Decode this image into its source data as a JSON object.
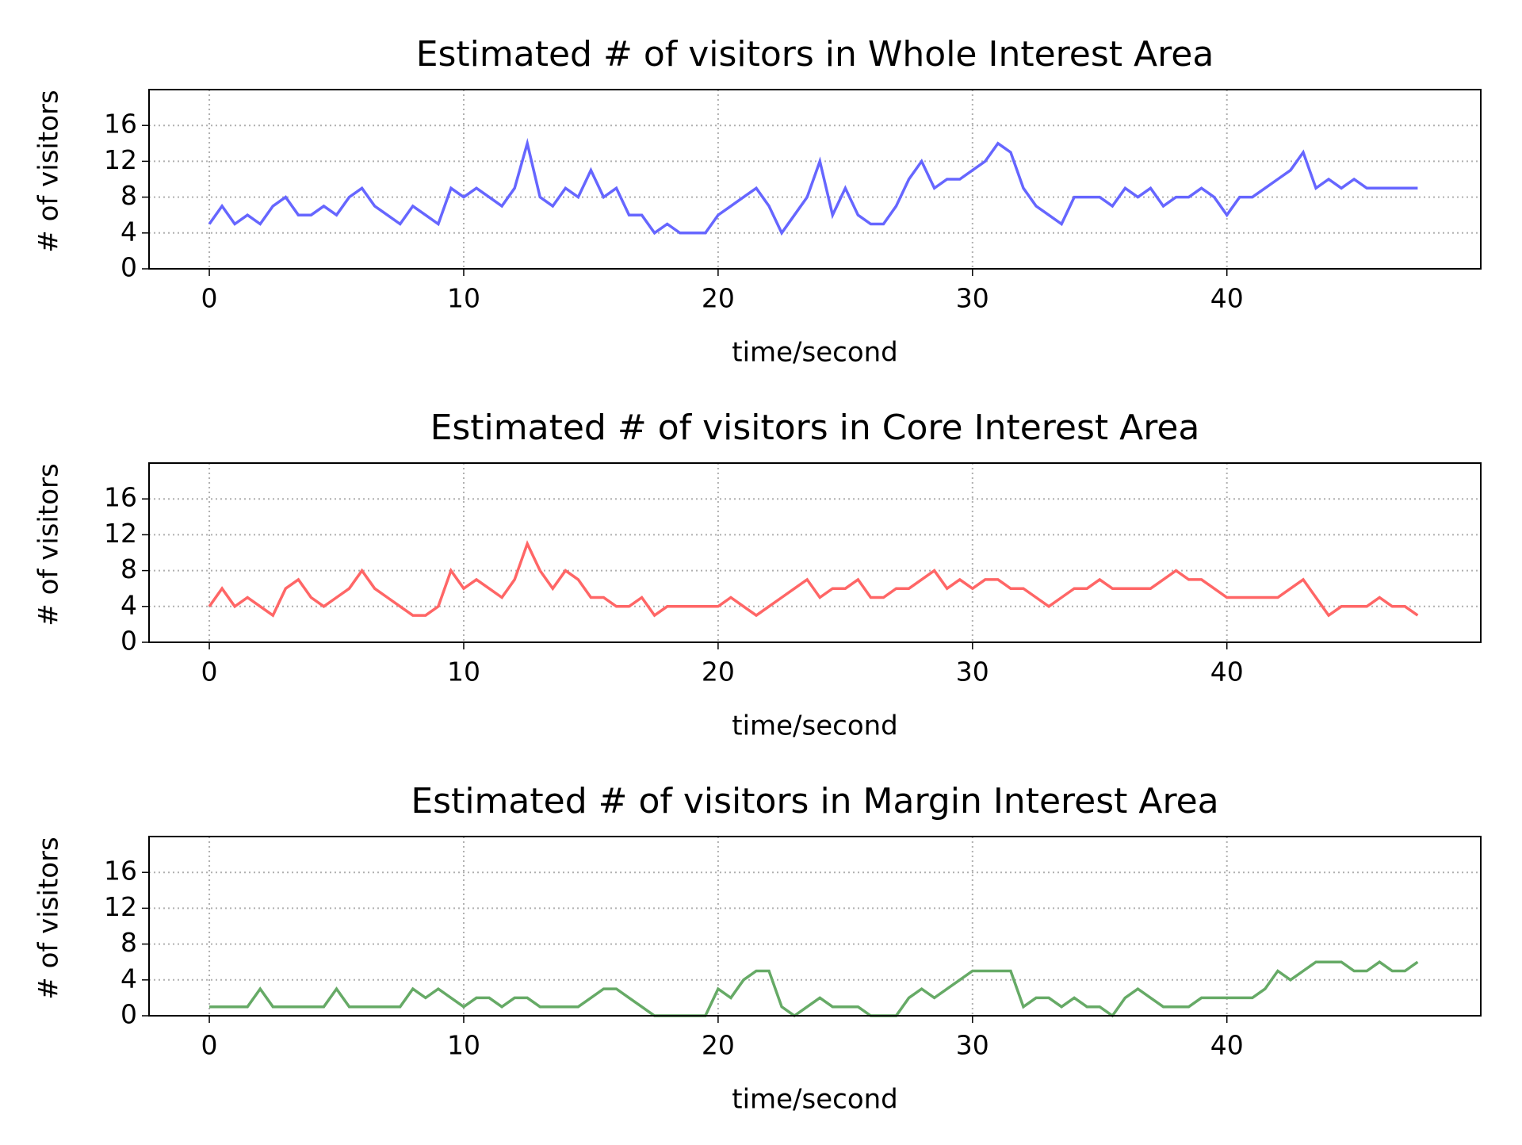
{
  "chart_data": [
    {
      "type": "line",
      "title": "Estimated # of visitors in Whole Interest Area",
      "xlabel": "time/second",
      "ylabel": "# of visitors",
      "color": "#6666ff",
      "x": [
        0,
        0.5,
        1,
        1.5,
        2,
        2.5,
        3,
        3.5,
        4,
        4.5,
        5,
        5.5,
        6,
        6.5,
        7,
        7.5,
        8,
        8.5,
        9,
        9.5,
        10,
        10.5,
        11,
        11.5,
        12,
        12.5,
        13,
        13.5,
        14,
        14.5,
        15,
        15.5,
        16,
        16.5,
        17,
        17.5,
        18,
        18.5,
        19,
        19.5,
        20,
        20.5,
        21,
        21.5,
        22,
        22.5,
        23,
        23.5,
        24,
        24.5,
        25,
        25.5,
        26,
        26.5,
        27,
        27.5,
        28,
        28.5,
        29,
        29.5,
        30,
        30.5,
        31,
        31.5,
        32,
        32.5,
        33,
        33.5,
        34,
        34.5,
        35,
        35.5,
        36,
        36.5,
        37,
        37.5,
        38,
        38.5,
        39,
        39.5,
        40,
        40.5,
        41,
        41.5,
        42,
        42.5,
        43,
        43.5,
        44,
        44.5,
        45,
        45.5,
        46,
        46.5,
        47,
        47.5
      ],
      "values": [
        5,
        7,
        5,
        6,
        5,
        7,
        8,
        6,
        6,
        7,
        6,
        8,
        9,
        7,
        6,
        5,
        7,
        6,
        5,
        9,
        8,
        9,
        8,
        7,
        9,
        14,
        8,
        7,
        9,
        8,
        11,
        8,
        9,
        6,
        6,
        4,
        5,
        4,
        4,
        4,
        6,
        7,
        8,
        9,
        7,
        4,
        6,
        8,
        12,
        6,
        9,
        6,
        5,
        5,
        7,
        10,
        12,
        9,
        10,
        10,
        11,
        12,
        14,
        13,
        9,
        7,
        6,
        5,
        8,
        8,
        8,
        7,
        9,
        8,
        9,
        7,
        8,
        8,
        9,
        8,
        6,
        8,
        8,
        9,
        10,
        11,
        13,
        9,
        10,
        9,
        10,
        9,
        9,
        9,
        9,
        9
      ],
      "xlim": [
        -2.37,
        49.98
      ],
      "ylim": [
        0,
        20
      ],
      "xticks": [
        0,
        10,
        20,
        30,
        40
      ],
      "yticks": [
        0,
        4,
        8,
        12,
        16
      ],
      "grid": true
    },
    {
      "type": "line",
      "title": "Estimated # of visitors in Core Interest Area",
      "xlabel": "time/second",
      "ylabel": "# of visitors",
      "color": "#ff6666",
      "x": [
        0,
        0.5,
        1,
        1.5,
        2,
        2.5,
        3,
        3.5,
        4,
        4.5,
        5,
        5.5,
        6,
        6.5,
        7,
        7.5,
        8,
        8.5,
        9,
        9.5,
        10,
        10.5,
        11,
        11.5,
        12,
        12.5,
        13,
        13.5,
        14,
        14.5,
        15,
        15.5,
        16,
        16.5,
        17,
        17.5,
        18,
        18.5,
        19,
        19.5,
        20,
        20.5,
        21,
        21.5,
        22,
        22.5,
        23,
        23.5,
        24,
        24.5,
        25,
        25.5,
        26,
        26.5,
        27,
        27.5,
        28,
        28.5,
        29,
        29.5,
        30,
        30.5,
        31,
        31.5,
        32,
        32.5,
        33,
        33.5,
        34,
        34.5,
        35,
        35.5,
        36,
        36.5,
        37,
        37.5,
        38,
        38.5,
        39,
        39.5,
        40,
        40.5,
        41,
        41.5,
        42,
        42.5,
        43,
        43.5,
        44,
        44.5,
        45,
        45.5,
        46,
        46.5,
        47,
        47.5
      ],
      "values": [
        4,
        6,
        4,
        5,
        4,
        3,
        6,
        7,
        5,
        4,
        5,
        6,
        8,
        6,
        5,
        4,
        3,
        3,
        4,
        8,
        6,
        7,
        6,
        5,
        7,
        11,
        8,
        6,
        8,
        7,
        5,
        5,
        4,
        4,
        5,
        3,
        4,
        4,
        4,
        4,
        4,
        5,
        4,
        3,
        4,
        5,
        6,
        7,
        5,
        6,
        6,
        7,
        5,
        5,
        6,
        6,
        7,
        8,
        6,
        7,
        6,
        7,
        7,
        6,
        6,
        5,
        4,
        5,
        6,
        6,
        7,
        6,
        6,
        6,
        6,
        7,
        8,
        7,
        7,
        6,
        5,
        5,
        5,
        5,
        5,
        6,
        7,
        5,
        3,
        4,
        4,
        4,
        5,
        4,
        4,
        3
      ],
      "xlim": [
        -2.37,
        49.98
      ],
      "ylim": [
        0,
        20
      ],
      "xticks": [
        0,
        10,
        20,
        30,
        40
      ],
      "yticks": [
        0,
        4,
        8,
        12,
        16
      ],
      "grid": true
    },
    {
      "type": "line",
      "title": "Estimated # of visitors in Margin Interest Area",
      "xlabel": "time/second",
      "ylabel": "# of visitors",
      "color": "#66aa66",
      "x": [
        0,
        0.5,
        1,
        1.5,
        2,
        2.5,
        3,
        3.5,
        4,
        4.5,
        5,
        5.5,
        6,
        6.5,
        7,
        7.5,
        8,
        8.5,
        9,
        9.5,
        10,
        10.5,
        11,
        11.5,
        12,
        12.5,
        13,
        13.5,
        14,
        14.5,
        15,
        15.5,
        16,
        16.5,
        17,
        17.5,
        18,
        18.5,
        19,
        19.5,
        20,
        20.5,
        21,
        21.5,
        22,
        22.5,
        23,
        23.5,
        24,
        24.5,
        25,
        25.5,
        26,
        26.5,
        27,
        27.5,
        28,
        28.5,
        29,
        29.5,
        30,
        30.5,
        31,
        31.5,
        32,
        32.5,
        33,
        33.5,
        34,
        34.5,
        35,
        35.5,
        36,
        36.5,
        37,
        37.5,
        38,
        38.5,
        39,
        39.5,
        40,
        40.5,
        41,
        41.5,
        42,
        42.5,
        43,
        43.5,
        44,
        44.5,
        45,
        45.5,
        46,
        46.5,
        47,
        47.5
      ],
      "values": [
        1,
        1,
        1,
        1,
        3,
        1,
        1,
        1,
        1,
        1,
        3,
        1,
        1,
        1,
        1,
        1,
        3,
        2,
        3,
        2,
        1,
        2,
        2,
        1,
        2,
        2,
        1,
        1,
        1,
        1,
        2,
        3,
        3,
        2,
        1,
        0,
        0,
        0,
        0,
        0,
        3,
        2,
        4,
        5,
        5,
        1,
        0,
        1,
        2,
        1,
        1,
        1,
        0,
        0,
        0,
        2,
        3,
        2,
        3,
        4,
        5,
        5,
        5,
        5,
        1,
        2,
        2,
        1,
        2,
        1,
        1,
        0,
        2,
        3,
        2,
        1,
        1,
        1,
        2,
        2,
        2,
        2,
        2,
        3,
        5,
        4,
        5,
        6,
        6,
        6,
        5,
        5,
        6,
        5,
        5,
        6
      ],
      "xlim": [
        -2.37,
        49.98
      ],
      "ylim": [
        0,
        20
      ],
      "xticks": [
        0,
        10,
        20,
        30,
        40
      ],
      "yticks": [
        0,
        4,
        8,
        12,
        16
      ],
      "grid": true
    }
  ]
}
